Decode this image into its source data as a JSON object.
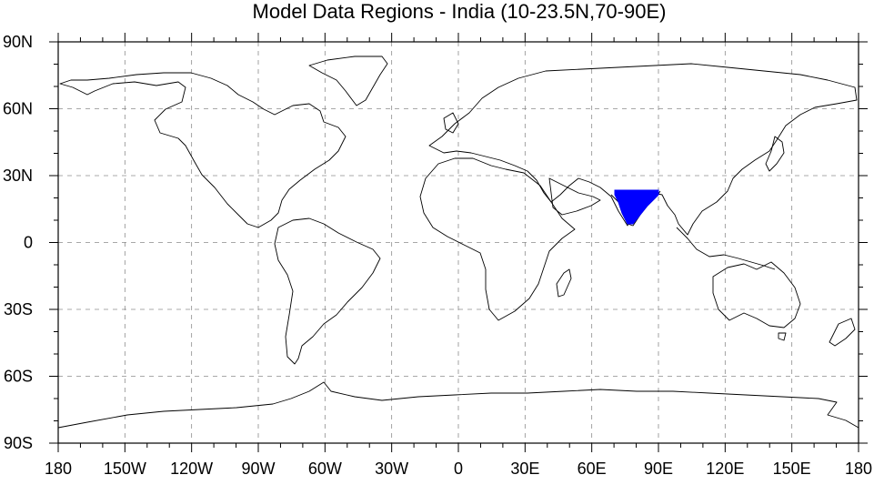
{
  "title": "Model Data Regions - India (10-23.5N,70-90E)",
  "map": {
    "projection": "cylindrical-equidistant",
    "lon_range": [
      -180,
      180
    ],
    "lat_range": [
      -90,
      90
    ],
    "grid": true,
    "grid_style": "dashed",
    "lon_ticks": [
      {
        "value": -180,
        "label": "180"
      },
      {
        "value": -150,
        "label": "150W"
      },
      {
        "value": -120,
        "label": "120W"
      },
      {
        "value": -90,
        "label": "90W"
      },
      {
        "value": -60,
        "label": "60W"
      },
      {
        "value": -30,
        "label": "30W"
      },
      {
        "value": 0,
        "label": "0"
      },
      {
        "value": 30,
        "label": "30E"
      },
      {
        "value": 60,
        "label": "60E"
      },
      {
        "value": 90,
        "label": "90E"
      },
      {
        "value": 120,
        "label": "120E"
      },
      {
        "value": 150,
        "label": "150E"
      },
      {
        "value": 180,
        "label": "180"
      }
    ],
    "lat_ticks": [
      {
        "value": 90,
        "label": "90N"
      },
      {
        "value": 60,
        "label": "60N"
      },
      {
        "value": 30,
        "label": "30N"
      },
      {
        "value": 0,
        "label": "0"
      },
      {
        "value": -30,
        "label": "30S"
      },
      {
        "value": -60,
        "label": "60S"
      },
      {
        "value": -90,
        "label": "90S"
      }
    ],
    "highlight_region": {
      "lat_min": 10,
      "lat_max": 23.5,
      "lon_min": 70,
      "lon_max": 90,
      "color": "#0000ff"
    },
    "coastline_color": "#000000"
  }
}
